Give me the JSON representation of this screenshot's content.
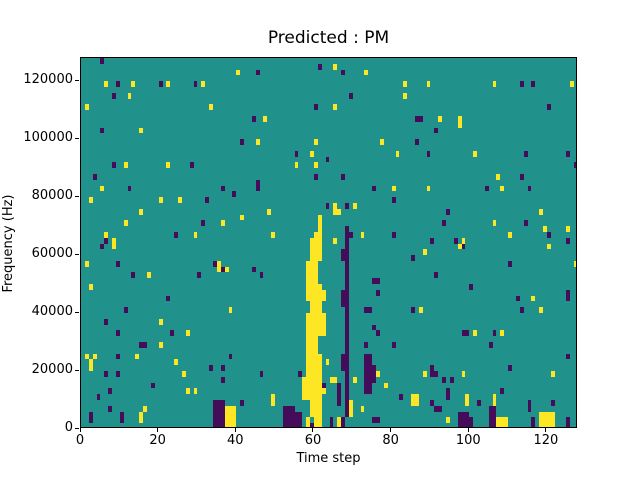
{
  "chart_data": {
    "type": "heatmap",
    "title": "Predicted : PM",
    "xlabel": "Time step",
    "ylabel": "Frequency (Hz)",
    "x_range": [
      0,
      128
    ],
    "y_range": [
      0,
      128000
    ],
    "x_ticks": [
      0,
      20,
      40,
      60,
      80,
      100,
      120
    ],
    "y_ticks": [
      0,
      20000,
      40000,
      60000,
      80000,
      100000,
      120000
    ],
    "grid": {
      "cols": 128,
      "rows": 64
    },
    "legend": "none",
    "colors": {
      "background": "#21918c",
      "yellow": "#fde725",
      "purple": "#440c59"
    },
    "value_map": {
      "background": 0,
      "yellow": "high",
      "purple": "low"
    },
    "cells": {
      "yellow": [
        [
          6,
          59
        ],
        [
          13,
          59
        ],
        [
          22,
          59
        ],
        [
          31,
          59
        ],
        [
          12,
          57
        ],
        [
          40,
          61
        ],
        [
          1,
          55
        ],
        [
          33,
          55
        ],
        [
          15,
          51
        ],
        [
          11,
          45
        ],
        [
          22,
          45
        ],
        [
          5,
          41
        ],
        [
          2,
          39
        ],
        [
          20,
          39
        ],
        [
          25,
          39
        ],
        [
          15,
          37
        ],
        [
          11,
          35
        ],
        [
          36,
          35
        ],
        [
          6,
          33
        ],
        [
          8,
          32
        ],
        [
          29,
          33
        ],
        [
          41,
          36
        ],
        [
          65,
          62
        ],
        [
          73,
          61
        ],
        [
          83,
          59
        ],
        [
          83,
          57
        ],
        [
          65,
          55
        ],
        [
          47,
          53
        ],
        [
          45,
          49
        ],
        [
          60,
          49
        ],
        [
          77,
          49
        ],
        [
          81,
          47
        ],
        [
          59,
          47
        ],
        [
          55,
          45
        ],
        [
          60,
          45
        ],
        [
          80,
          41
        ],
        [
          70,
          38
        ],
        [
          65,
          37,
          1,
          2
        ],
        [
          66,
          37
        ],
        [
          48,
          37
        ],
        [
          49,
          33
        ],
        [
          60,
          32,
          1,
          2
        ],
        [
          72,
          33
        ],
        [
          65,
          32
        ],
        [
          89,
          59
        ],
        [
          106,
          59
        ],
        [
          126,
          59
        ],
        [
          92,
          53
        ],
        [
          97,
          52,
          1,
          2
        ],
        [
          101,
          47
        ],
        [
          107,
          43
        ],
        [
          108,
          41
        ],
        [
          89,
          41
        ],
        [
          118,
          37
        ],
        [
          106,
          35
        ],
        [
          119,
          34
        ],
        [
          110,
          33
        ],
        [
          98,
          32
        ],
        [
          125,
          34
        ],
        [
          8,
          31
        ],
        [
          1,
          28
        ],
        [
          17,
          26
        ],
        [
          35,
          27,
          1,
          2
        ],
        [
          37,
          27
        ],
        [
          2,
          24
        ],
        [
          20,
          18
        ],
        [
          38,
          20
        ],
        [
          27,
          16
        ],
        [
          20,
          14
        ],
        [
          1,
          12
        ],
        [
          3,
          12
        ],
        [
          14,
          12
        ],
        [
          2,
          10,
          1,
          2
        ],
        [
          24,
          11
        ],
        [
          26,
          9
        ],
        [
          27,
          6
        ],
        [
          29,
          6
        ],
        [
          16,
          3
        ],
        [
          15,
          1,
          1,
          2
        ],
        [
          37,
          0,
          3,
          4
        ],
        [
          61,
          33,
          1,
          4
        ],
        [
          59,
          29,
          3,
          4
        ],
        [
          58,
          25,
          3,
          4
        ],
        [
          58,
          22,
          4,
          3
        ],
        [
          59,
          20,
          3,
          2
        ],
        [
          58,
          16,
          5,
          4
        ],
        [
          58,
          13,
          3,
          3
        ],
        [
          58,
          9,
          4,
          4
        ],
        [
          57,
          5,
          5,
          4
        ],
        [
          59,
          2,
          3,
          3
        ],
        [
          58,
          0,
          1,
          2
        ],
        [
          60,
          0,
          2,
          2
        ],
        [
          62,
          22,
          1,
          2
        ],
        [
          63,
          11
        ],
        [
          62,
          6
        ],
        [
          49,
          4,
          1,
          2
        ],
        [
          64,
          8
        ],
        [
          65,
          8
        ],
        [
          69,
          2,
          1,
          3
        ],
        [
          66,
          0,
          1,
          2
        ],
        [
          70,
          8
        ],
        [
          76,
          9
        ],
        [
          78,
          7
        ],
        [
          72,
          3
        ],
        [
          88,
          30
        ],
        [
          97,
          31
        ],
        [
          120,
          31
        ],
        [
          127,
          28
        ],
        [
          116,
          22
        ],
        [
          118,
          20
        ],
        [
          87,
          20
        ],
        [
          101,
          16
        ],
        [
          108,
          16
        ],
        [
          88,
          9
        ],
        [
          98,
          9
        ],
        [
          121,
          9
        ],
        [
          85,
          4,
          2,
          2
        ],
        [
          99,
          4,
          1,
          2
        ],
        [
          106,
          4,
          1,
          2
        ],
        [
          94,
          1
        ],
        [
          107,
          0,
          3,
          2
        ],
        [
          118,
          0,
          3,
          3
        ],
        [
          121,
          0,
          1,
          3
        ]
      ],
      "purple": [
        [
          5,
          63
        ],
        [
          9,
          59
        ],
        [
          20,
          59
        ],
        [
          29,
          59
        ],
        [
          8,
          57
        ],
        [
          5,
          51
        ],
        [
          41,
          49
        ],
        [
          8,
          45
        ],
        [
          28,
          45
        ],
        [
          3,
          43
        ],
        [
          12,
          41
        ],
        [
          36,
          41
        ],
        [
          39,
          40
        ],
        [
          32,
          39
        ],
        [
          31,
          35
        ],
        [
          24,
          33
        ],
        [
          6,
          32
        ],
        [
          45,
          61
        ],
        [
          61,
          62
        ],
        [
          67,
          61
        ],
        [
          69,
          57
        ],
        [
          60,
          55
        ],
        [
          44,
          53
        ],
        [
          55,
          47
        ],
        [
          63,
          46
        ],
        [
          60,
          43
        ],
        [
          67,
          43
        ],
        [
          45,
          41,
          1,
          2
        ],
        [
          75,
          41
        ],
        [
          80,
          39
        ],
        [
          63,
          38
        ],
        [
          68,
          38
        ],
        [
          69,
          33
        ],
        [
          68,
          32
        ],
        [
          80,
          33
        ],
        [
          113,
          59
        ],
        [
          116,
          59
        ],
        [
          120,
          55
        ],
        [
          86,
          53,
          2,
          1
        ],
        [
          91,
          51
        ],
        [
          86,
          49
        ],
        [
          89,
          47
        ],
        [
          114,
          47
        ],
        [
          125,
          47
        ],
        [
          127,
          45
        ],
        [
          113,
          43
        ],
        [
          104,
          41
        ],
        [
          115,
          41
        ],
        [
          94,
          37
        ],
        [
          93,
          35
        ],
        [
          114,
          35
        ],
        [
          120,
          33
        ],
        [
          90,
          32
        ],
        [
          96,
          32
        ],
        [
          125,
          32
        ],
        [
          5,
          31
        ],
        [
          9,
          28
        ],
        [
          13,
          26
        ],
        [
          30,
          26
        ],
        [
          34,
          28
        ],
        [
          36,
          27
        ],
        [
          22,
          22
        ],
        [
          11,
          20
        ],
        [
          6,
          18
        ],
        [
          9,
          16
        ],
        [
          23,
          16
        ],
        [
          15,
          14,
          2,
          1
        ],
        [
          9,
          12
        ],
        [
          38,
          12
        ],
        [
          36,
          10
        ],
        [
          33,
          10
        ],
        [
          6,
          9
        ],
        [
          9,
          9
        ],
        [
          36,
          8
        ],
        [
          18,
          7
        ],
        [
          7,
          6
        ],
        [
          4,
          5
        ],
        [
          7,
          3
        ],
        [
          2,
          1,
          1,
          2
        ],
        [
          10,
          1,
          1,
          2
        ],
        [
          34,
          0,
          3,
          5
        ],
        [
          41,
          4
        ],
        [
          44,
          27
        ],
        [
          46,
          26
        ],
        [
          75,
          25,
          2,
          1
        ],
        [
          76,
          23
        ],
        [
          73,
          20,
          2,
          1
        ],
        [
          75,
          17
        ],
        [
          76,
          16
        ],
        [
          80,
          14
        ],
        [
          73,
          14
        ],
        [
          73,
          6,
          2,
          7
        ],
        [
          75,
          8,
          1,
          3
        ],
        [
          56,
          9
        ],
        [
          46,
          9
        ],
        [
          52,
          0,
          3,
          4
        ],
        [
          55,
          0,
          2,
          3
        ],
        [
          62,
          7
        ],
        [
          66,
          4,
          1,
          4
        ],
        [
          68,
          2,
          1,
          33
        ],
        [
          67,
          29,
          1,
          2
        ],
        [
          67,
          21,
          1,
          3
        ],
        [
          67,
          10,
          1,
          3
        ],
        [
          67,
          0,
          1,
          2
        ],
        [
          64,
          0,
          1,
          2
        ],
        [
          59,
          0
        ],
        [
          75,
          1,
          2,
          1
        ],
        [
          82,
          5
        ],
        [
          98,
          31
        ],
        [
          85,
          29
        ],
        [
          110,
          28
        ],
        [
          91,
          26
        ],
        [
          100,
          24
        ],
        [
          125,
          23
        ],
        [
          112,
          22
        ],
        [
          125,
          22
        ],
        [
          113,
          20
        ],
        [
          85,
          20
        ],
        [
          98,
          16,
          2,
          1
        ],
        [
          106,
          16
        ],
        [
          105,
          14
        ],
        [
          125,
          12
        ],
        [
          110,
          10
        ],
        [
          90,
          10
        ],
        [
          90,
          9,
          2,
          1
        ],
        [
          93,
          8
        ],
        [
          95,
          8
        ],
        [
          94,
          6
        ],
        [
          108,
          6
        ],
        [
          90,
          4
        ],
        [
          94,
          5
        ],
        [
          102,
          4
        ],
        [
          115,
          4
        ],
        [
          121,
          4
        ],
        [
          91,
          3,
          2,
          1
        ],
        [
          97,
          0,
          3,
          3
        ],
        [
          100,
          0,
          1,
          2
        ],
        [
          105,
          0,
          2,
          4
        ],
        [
          115,
          3
        ],
        [
          116,
          1
        ],
        [
          116,
          0,
          1,
          2
        ],
        [
          125,
          0,
          1,
          2
        ]
      ]
    }
  }
}
